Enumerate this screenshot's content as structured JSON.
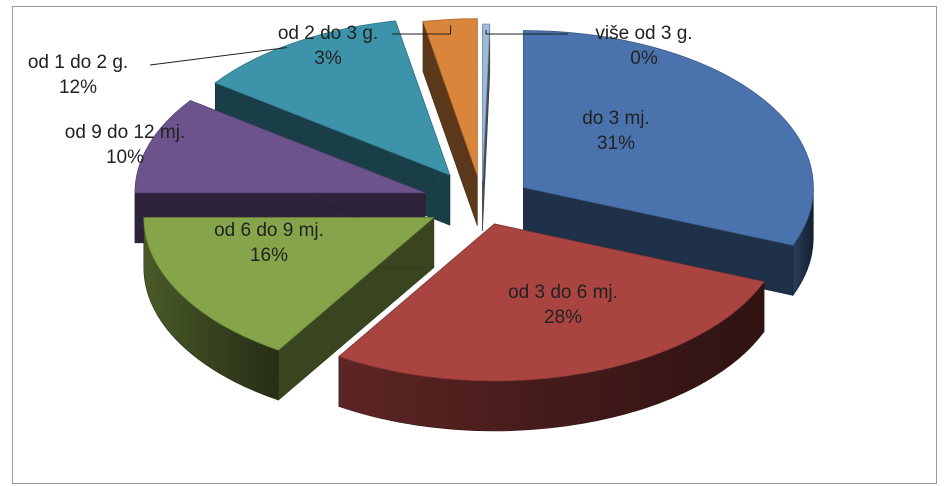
{
  "chart_data": {
    "type": "pie",
    "title": "",
    "legend": "none",
    "style": "3d-exploded",
    "slices": [
      {
        "label": "do 3 mj.",
        "value": 31,
        "display": "31%",
        "color": "#4a73ad"
      },
      {
        "label": "od 3 do 6 mj.",
        "value": 28,
        "display": "28%",
        "color": "#a94441"
      },
      {
        "label": "od 6 do 9 mj.",
        "value": 16,
        "display": "16%",
        "color": "#86a54a"
      },
      {
        "label": "od 9 do 12 mj.",
        "value": 10,
        "display": "10%",
        "color": "#6c538c"
      },
      {
        "label": "od 1 do 2 g.",
        "value": 12,
        "display": "12%",
        "color": "#3d93aa"
      },
      {
        "label": "od 2 do 3 g.",
        "value": 3,
        "display": "3%",
        "color": "#d9853c"
      },
      {
        "label": "više od 3 g.",
        "value": 0,
        "display": "0%",
        "color": "#9cbbd9"
      }
    ]
  }
}
